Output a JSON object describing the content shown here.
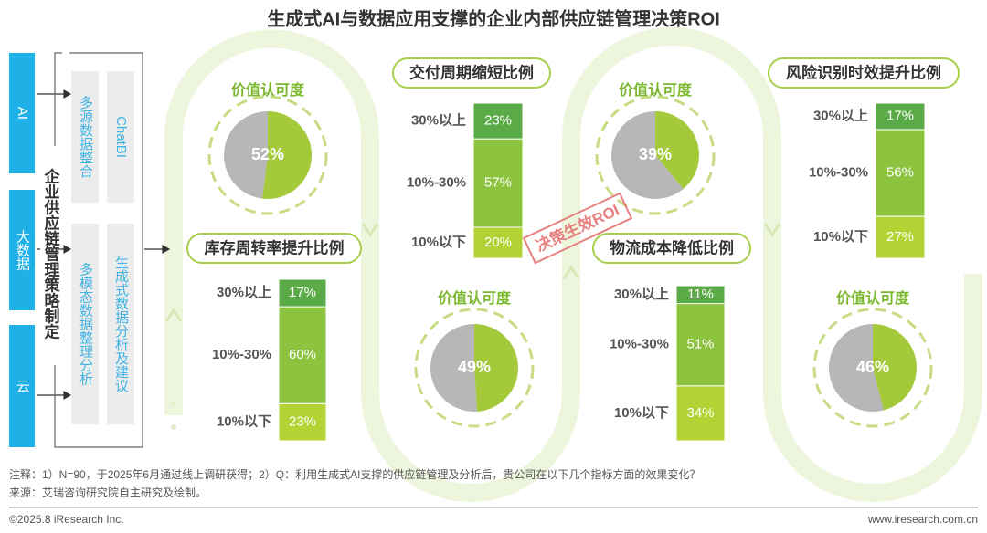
{
  "title": "生成式AI与数据应用支撑的企业内部供应链管理决策ROI",
  "left_panel": {
    "sources": [
      "AI",
      "大数据",
      "云"
    ],
    "strategy": "企业供应链管理策略制定",
    "data_steps": [
      "多源数据整合",
      "多模态数据整理分析"
    ],
    "tools": [
      "ChatBI",
      "生成式数据分析及建议"
    ]
  },
  "stamp": "决策生效ROI",
  "chart_data": [
    {
      "type": "pie",
      "title": "价值认可度",
      "values": [
        52,
        48
      ],
      "value_labels": [
        "52%",
        null
      ],
      "colors": [
        "#a4c93a",
        "#b7b7b7"
      ]
    },
    {
      "type": "stacked_column",
      "title": "交付周期缩短比例",
      "categories": [
        "10%以下",
        "10%-30%",
        "30%以上"
      ],
      "values": [
        20,
        57,
        23
      ],
      "value_labels": [
        "20%",
        "57%",
        "23%"
      ],
      "colors": [
        "#b3d334",
        "#8cc43f",
        "#5aab47"
      ],
      "ylim": [
        0,
        100
      ]
    },
    {
      "type": "pie",
      "title": "价值认可度",
      "values": [
        39,
        61
      ],
      "value_labels": [
        "39%",
        null
      ],
      "colors": [
        "#a4c93a",
        "#b7b7b7"
      ]
    },
    {
      "type": "stacked_column",
      "title": "风险识别时效提升比例",
      "categories": [
        "10%以下",
        "10%-30%",
        "30%以上"
      ],
      "values": [
        27,
        56,
        17
      ],
      "value_labels": [
        "27%",
        "56%",
        "17%"
      ],
      "colors": [
        "#b3d334",
        "#8cc43f",
        "#5aab47"
      ],
      "ylim": [
        0,
        100
      ]
    },
    {
      "type": "stacked_column",
      "title": "库存周转率提升比例",
      "categories": [
        "10%以下",
        "10%-30%",
        "30%以上"
      ],
      "values": [
        23,
        60,
        17
      ],
      "value_labels": [
        "23%",
        "60%",
        "17%"
      ],
      "colors": [
        "#b3d334",
        "#8cc43f",
        "#5aab47"
      ],
      "ylim": [
        0,
        100
      ]
    },
    {
      "type": "pie",
      "title": "价值认可度",
      "values": [
        49,
        51
      ],
      "value_labels": [
        "49%",
        null
      ],
      "colors": [
        "#a4c93a",
        "#b7b7b7"
      ]
    },
    {
      "type": "stacked_column",
      "title": "物流成本降低比例",
      "categories": [
        "10%以下",
        "10%-30%",
        "30%以上"
      ],
      "values": [
        34,
        51,
        11
      ],
      "value_labels": [
        "34%",
        "51%",
        "11%"
      ],
      "colors": [
        "#b3d334",
        "#8cc43f",
        "#5aab47"
      ],
      "ylim": [
        0,
        100
      ]
    },
    {
      "type": "pie",
      "title": "价值认可度",
      "values": [
        46,
        54
      ],
      "value_labels": [
        "46%",
        null
      ],
      "colors": [
        "#a4c93a",
        "#b7b7b7"
      ]
    }
  ],
  "footer": {
    "note": "注释：1）N=90，于2025年6月通过线上调研获得；2）Q：利用生成式AI支撑的供应链管理及分析后，贵公司在以下几个指标方面的效果变化？",
    "source": "来源：艾瑞咨询研究院自主研究及绘制。",
    "copyright": "©2025.8 iResearch Inc.",
    "website": "www.iresearch.com.cn"
  }
}
